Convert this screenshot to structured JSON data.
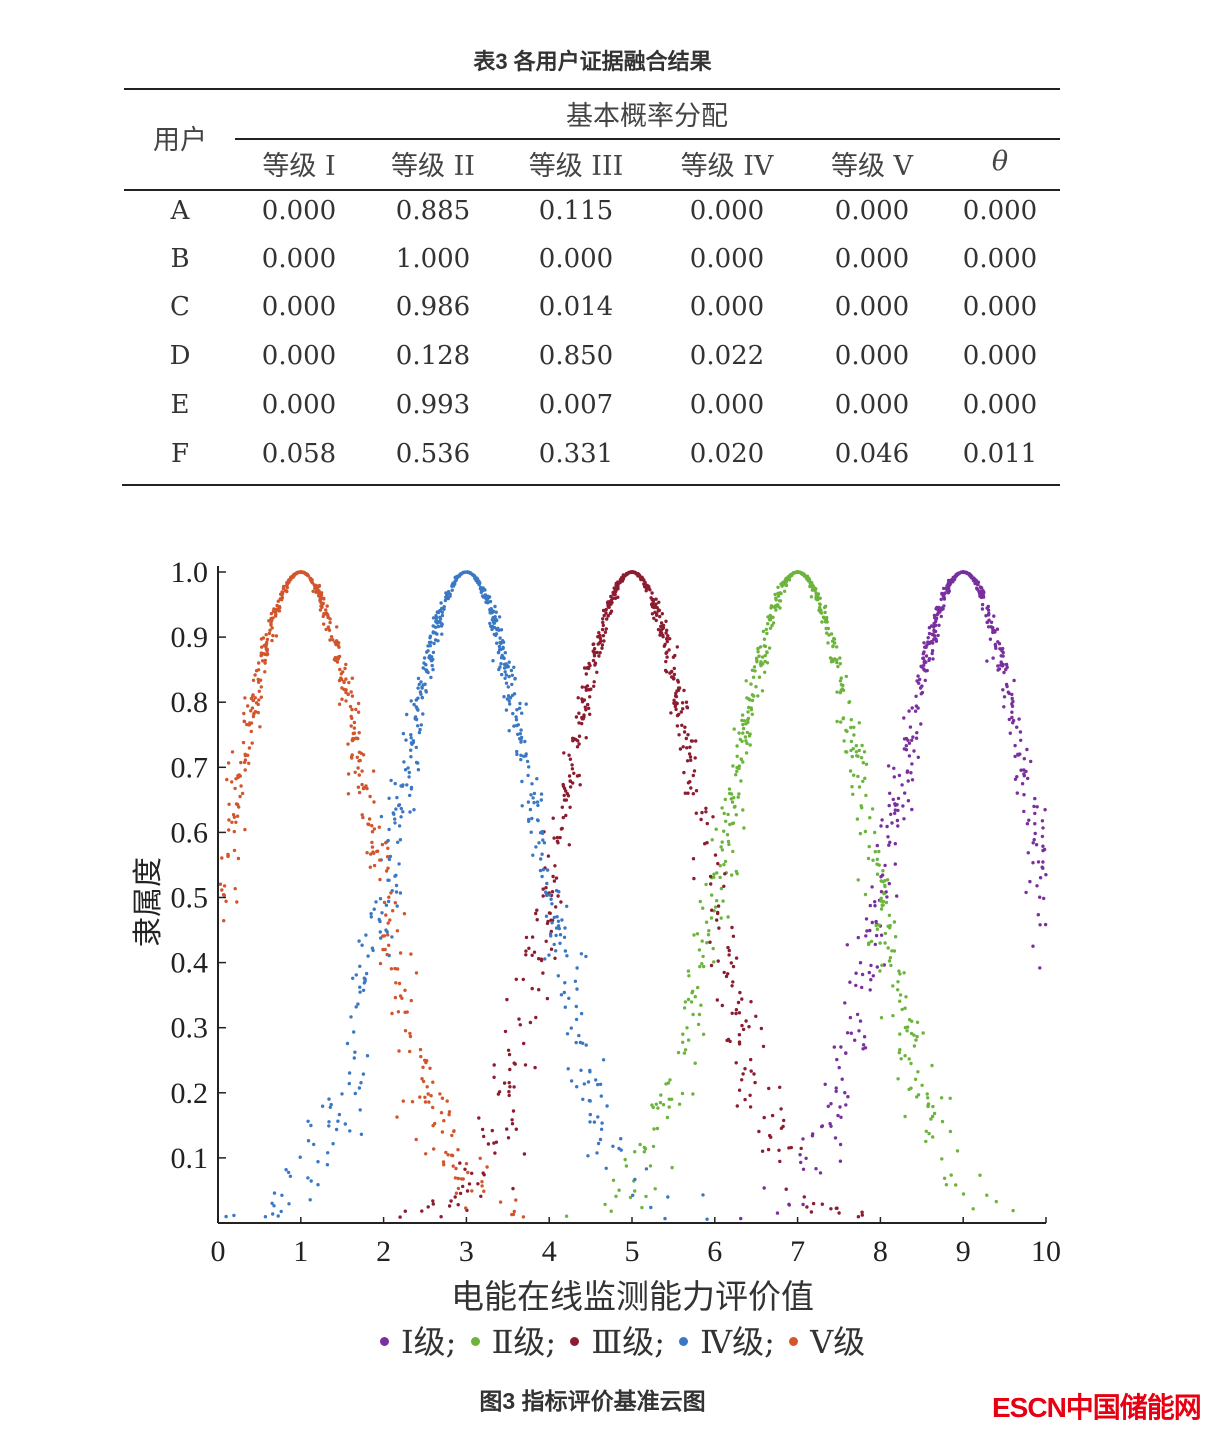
{
  "table": {
    "title": "表3 各用户证据融合结果",
    "user_header": "用户",
    "group_header": "基本概率分配",
    "columns": [
      "等级 I",
      "等级 II",
      "等级 III",
      "等级 IV",
      "等级 V",
      "θ"
    ],
    "rows": [
      {
        "user": "A",
        "values": [
          "0.000",
          "0.885",
          "0.115",
          "0.000",
          "0.000",
          "0.000"
        ]
      },
      {
        "user": "B",
        "values": [
          "0.000",
          "1.000",
          "0.000",
          "0.000",
          "0.000",
          "0.000"
        ]
      },
      {
        "user": "C",
        "values": [
          "0.000",
          "0.986",
          "0.014",
          "0.000",
          "0.000",
          "0.000"
        ]
      },
      {
        "user": "D",
        "values": [
          "0.000",
          "0.128",
          "0.850",
          "0.022",
          "0.000",
          "0.000"
        ]
      },
      {
        "user": "E",
        "values": [
          "0.000",
          "0.993",
          "0.007",
          "0.000",
          "0.000",
          "0.000"
        ]
      },
      {
        "user": "F",
        "values": [
          "0.058",
          "0.536",
          "0.331",
          "0.020",
          "0.046",
          "0.011"
        ]
      }
    ]
  },
  "chart_data": {
    "type": "scatter",
    "title": "",
    "xlabel": "电能在线监测能力评价值",
    "ylabel": "隶属度",
    "xlim": [
      0,
      10
    ],
    "ylim": [
      0,
      1.0
    ],
    "xticks": [
      "0",
      "1",
      "2",
      "3",
      "4",
      "5",
      "6",
      "7",
      "8",
      "9",
      "10"
    ],
    "yticks": [
      "0.1",
      "0.2",
      "0.3",
      "0.4",
      "0.5",
      "0.6",
      "0.7",
      "0.8",
      "0.9",
      "1.0"
    ],
    "grid": false,
    "legend_position": "bottom",
    "model": "normal cloud: y = exp(-(x-Ex)^2 / (2*En'^2))",
    "series": [
      {
        "name": "Ⅰ级",
        "label": "Ⅰ级;",
        "color": "#7a2f9e",
        "Ex": 9,
        "En": 0.85,
        "He": 0.08,
        "points": 600
      },
      {
        "name": "Ⅱ级",
        "label": "Ⅱ级;",
        "color": "#6cb43c",
        "Ex": 7,
        "En": 0.85,
        "He": 0.08,
        "points": 600
      },
      {
        "name": "Ⅲ级",
        "label": "Ⅲ级;",
        "color": "#8c1c30",
        "Ex": 5,
        "En": 0.85,
        "He": 0.08,
        "points": 600
      },
      {
        "name": "Ⅳ级",
        "label": "Ⅳ级;",
        "color": "#3b78c3",
        "Ex": 3,
        "En": 0.85,
        "He": 0.08,
        "points": 600
      },
      {
        "name": "Ⅴ级",
        "label": "Ⅴ级",
        "color": "#d2552c",
        "Ex": 1,
        "En": 0.85,
        "He": 0.08,
        "points": 600
      }
    ]
  },
  "caption": "图3 指标评价基准云图",
  "watermark": "ESCN中国储能网"
}
